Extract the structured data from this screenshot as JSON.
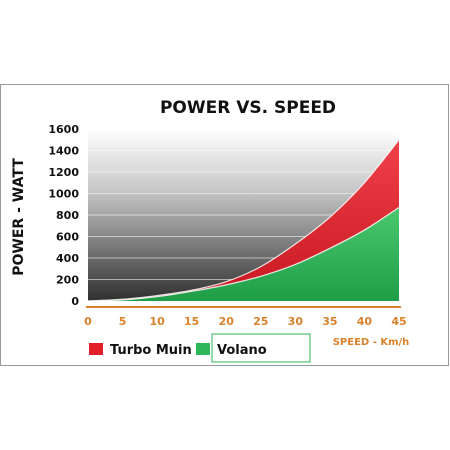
{
  "chart_data": {
    "type": "area",
    "title": "POWER VS. SPEED",
    "ylabel": "POWER - WATT",
    "xlabel": "SPEED - Km/h",
    "x": [
      0,
      5,
      10,
      15,
      20,
      25,
      30,
      35,
      40,
      45
    ],
    "ylim": [
      0,
      1600
    ],
    "xlim": [
      0,
      45
    ],
    "yticks": [
      0,
      200,
      400,
      600,
      800,
      1000,
      1200,
      1400,
      1600
    ],
    "xticks": [
      0,
      5,
      10,
      15,
      20,
      25,
      30,
      35,
      40,
      45
    ],
    "grid": true,
    "legend_position": "bottom-left",
    "series": [
      {
        "name": "Turbo Muin",
        "color": "#e3202a",
        "values": [
          0,
          16,
          50,
          100,
          180,
          320,
          530,
          780,
          1100,
          1500
        ]
      },
      {
        "name": "Volano",
        "color": "#2eb65a",
        "values": [
          0,
          10,
          40,
          90,
          150,
          230,
          340,
          490,
          660,
          870
        ]
      }
    ]
  }
}
